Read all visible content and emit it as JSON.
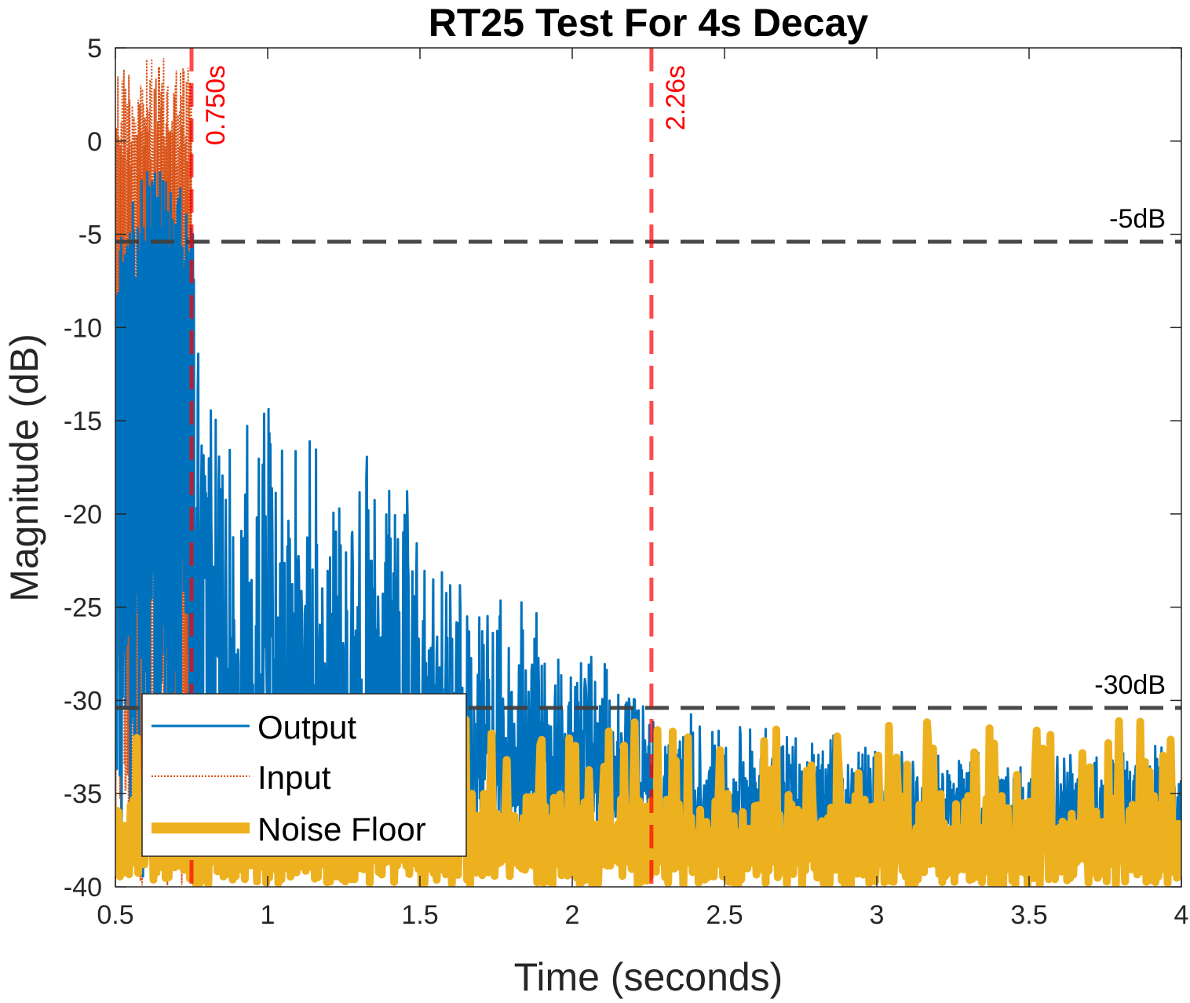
{
  "chart_data": {
    "type": "line",
    "title": "RT25 Test For 4s Decay",
    "xlabel": "Time (seconds)",
    "ylabel": "Magnitude (dB)",
    "xlim": [
      0.5,
      4
    ],
    "ylim": [
      -40,
      5
    ],
    "xticks": [
      0.5,
      1,
      1.5,
      2,
      2.5,
      3,
      3.5,
      4
    ],
    "xtick_labels": [
      "0.5",
      "1",
      "1.5",
      "2",
      "2.5",
      "3",
      "3.5",
      "4"
    ],
    "yticks": [
      5,
      0,
      -5,
      -10,
      -15,
      -20,
      -25,
      -30,
      -35,
      -40
    ],
    "ytick_labels": [
      "5",
      "0",
      "-5",
      "-10",
      "-15",
      "-20",
      "-25",
      "-30",
      "-35",
      "-40"
    ],
    "grid": false,
    "legend_position": "bottom-left",
    "series": [
      {
        "name": "Output",
        "color": "#0072BD",
        "style": "solid",
        "envelope_points": [
          [
            0.5,
            -6
          ],
          [
            0.6,
            -1
          ],
          [
            0.7,
            -2
          ],
          [
            0.75,
            -4
          ],
          [
            0.8,
            -12
          ],
          [
            0.95,
            -14
          ],
          [
            1.0,
            -13
          ],
          [
            1.2,
            -15
          ],
          [
            1.4,
            -17
          ],
          [
            1.6,
            -22
          ],
          [
            1.8,
            -24
          ],
          [
            2.0,
            -26
          ],
          [
            2.2,
            -29
          ],
          [
            2.26,
            -30
          ],
          [
            2.5,
            -31
          ],
          [
            3.0,
            -32
          ],
          [
            3.5,
            -33
          ],
          [
            4.0,
            -32
          ]
        ],
        "floor_db": -38
      },
      {
        "name": "Input",
        "color": "#D95319",
        "style": "dotted",
        "x_range": [
          0.5,
          0.75
        ],
        "peak_db": 4.5
      },
      {
        "name": "Noise Floor",
        "color": "#EDB120",
        "style": "thick",
        "peak_db": -31,
        "typical_high_db": -35,
        "floor_db": -40
      }
    ],
    "reference_lines": [
      {
        "label": "-5dB",
        "y": -5.4,
        "color": "#404040"
      },
      {
        "label": "-30dB",
        "y": -30.4,
        "color": "#404040"
      }
    ],
    "markers": [
      {
        "label": "0.750s",
        "x": 0.75,
        "color": "#ff0000"
      },
      {
        "label": "2.26s",
        "x": 2.26,
        "color": "#ff0000"
      }
    ]
  }
}
